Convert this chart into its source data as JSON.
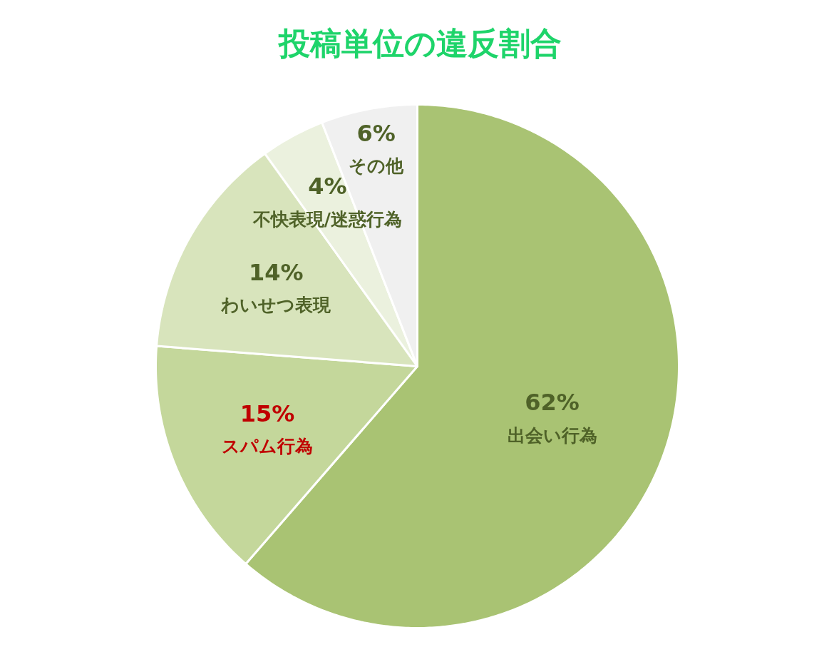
{
  "chart_data": {
    "type": "pie",
    "title": "投稿単位の違反割合",
    "categories": [
      "出会い行為",
      "スパム行為",
      "わいせつ表現",
      "不快表現/迷惑行為",
      "その他"
    ],
    "values": [
      62,
      15,
      14,
      4,
      6
    ],
    "value_labels": [
      "62%",
      "15%",
      "14%",
      "4%",
      "6%"
    ],
    "colors": [
      "#a9c373",
      "#c4d79b",
      "#d8e4bc",
      "#ebf1de",
      "#f0f0f0"
    ]
  }
}
